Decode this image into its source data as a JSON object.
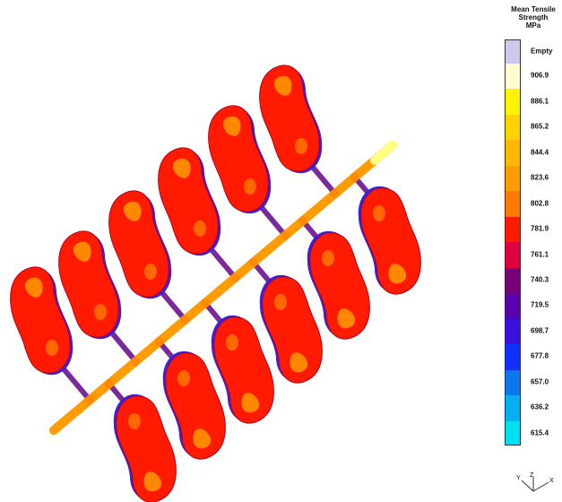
{
  "legend": {
    "title_lines": [
      "Mean Tensile",
      "Strength",
      "MPa"
    ],
    "items": [
      {
        "label": "Empty",
        "color": "#d0c8ea"
      },
      {
        "label": "906.9",
        "color": "#fffcd0"
      },
      {
        "label": "886.1",
        "color": "#fff400"
      },
      {
        "label": "865.2",
        "color": "#ffd400"
      },
      {
        "label": "844.4",
        "color": "#ffb800"
      },
      {
        "label": "823.6",
        "color": "#ff9c00"
      },
      {
        "label": "802.8",
        "color": "#ff7a00"
      },
      {
        "label": "781.9",
        "color": "#ff1a00"
      },
      {
        "label": "761.1",
        "color": "#e00040"
      },
      {
        "label": "740.3",
        "color": "#7a0078"
      },
      {
        "label": "719.5",
        "color": "#5a00b0"
      },
      {
        "label": "698.7",
        "color": "#3a10e0"
      },
      {
        "label": "677.8",
        "color": "#1030ff"
      },
      {
        "label": "657.0",
        "color": "#0a78f0"
      },
      {
        "label": "636.2",
        "color": "#00b0f0"
      },
      {
        "label": "615.4",
        "color": "#00e0f0"
      }
    ]
  },
  "triad": {
    "y_label": "Y",
    "z_label": "Z",
    "x_label": "X"
  },
  "colors": {
    "part_fill": "#ff1a00",
    "part_rim": "#3a20e0",
    "part_spot": "#ff9c00",
    "runner": "#ff9c00",
    "runner_tip": "#ffff80",
    "gate": "#7a2a9a"
  }
}
